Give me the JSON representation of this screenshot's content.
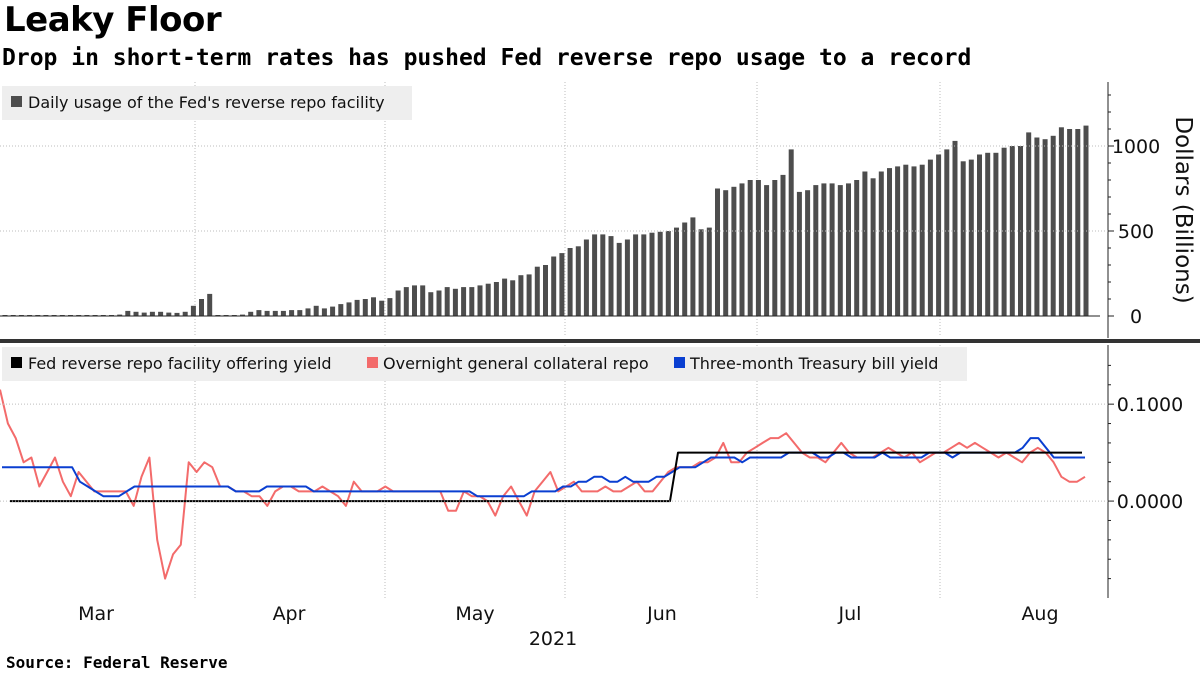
{
  "title": "Leaky Floor",
  "subtitle": "Drop in short-term rates has pushed Fed reverse repo usage to a record",
  "source": "Source: Federal Reserve",
  "colors": {
    "bars": "#4d4d4d",
    "fed_yield": "#000000",
    "overnight_repo": "#f36b6b",
    "tbill": "#0a3fd1",
    "grid": "#bdbdbd"
  },
  "chart_data": [
    {
      "type": "bar",
      "title": "Leaky Floor",
      "ylabel": "Dollars (Billions)",
      "ylim": [
        0,
        1350
      ],
      "yticks": [
        0,
        500,
        1000
      ],
      "ytick_labels": [
        "0",
        "500",
        "1000"
      ],
      "legend": [
        "Daily usage of the Fed's reverse repo facility"
      ],
      "xlabel": "2021",
      "x_month_labels": [
        "Mar",
        "Apr",
        "May",
        "Jun",
        "Jul",
        "Aug"
      ],
      "series": [
        {
          "name": "Daily usage of the Fed's reverse repo facility",
          "values": [
            2,
            3,
            2,
            3,
            4,
            3,
            2,
            5,
            4,
            3,
            2,
            6,
            4,
            5,
            8,
            30,
            25,
            20,
            25,
            25,
            20,
            18,
            25,
            60,
            100,
            130,
            5,
            2,
            5,
            8,
            25,
            35,
            30,
            30,
            30,
            35,
            35,
            45,
            60,
            45,
            55,
            70,
            80,
            95,
            100,
            110,
            90,
            105,
            150,
            170,
            180,
            180,
            140,
            150,
            170,
            160,
            170,
            170,
            180,
            190,
            200,
            220,
            210,
            240,
            245,
            290,
            300,
            350,
            370,
            400,
            410,
            450,
            480,
            480,
            470,
            430,
            450,
            480,
            480,
            490,
            495,
            500,
            520,
            550,
            580,
            510,
            520,
            750,
            740,
            760,
            780,
            800,
            800,
            770,
            800,
            830,
            980,
            730,
            740,
            770,
            780,
            780,
            770,
            780,
            800,
            850,
            810,
            850,
            870,
            880,
            890,
            880,
            890,
            920,
            950,
            980,
            1030,
            910,
            920,
            950,
            960,
            960,
            990,
            1000,
            1000,
            1080,
            1050,
            1040,
            1060,
            1110,
            1100,
            1100,
            1120
          ]
        }
      ]
    },
    {
      "type": "line",
      "ylim": [
        -0.1,
        0.16
      ],
      "yticks": [
        0.1,
        0.0
      ],
      "ytick_labels": [
        "0.1000",
        "0.0000"
      ],
      "legend": [
        "Fed reverse repo facility offering yield",
        "Overnight general collateral repo",
        "Three-month Treasury bill yield"
      ],
      "xlabel": "2021",
      "x_month_labels": [
        "Mar",
        "Apr",
        "May",
        "Jun",
        "Jul",
        "Aug"
      ],
      "series": [
        {
          "name": "Fed reverse repo facility offering yield",
          "values": [
            0,
            0,
            0,
            0,
            0,
            0,
            0,
            0,
            0,
            0,
            0,
            0,
            0,
            0,
            0,
            0,
            0,
            0,
            0,
            0,
            0,
            0,
            0,
            0,
            0,
            0,
            0,
            0,
            0,
            0,
            0,
            0,
            0,
            0,
            0,
            0,
            0,
            0,
            0,
            0,
            0,
            0,
            0,
            0,
            0,
            0,
            0,
            0,
            0,
            0,
            0,
            0,
            0,
            0,
            0,
            0,
            0,
            0,
            0,
            0,
            0,
            0,
            0,
            0,
            0,
            0,
            0,
            0,
            0,
            0,
            0,
            0,
            0,
            0,
            0,
            0,
            0,
            0,
            0,
            0,
            0,
            0,
            0,
            0,
            0,
            0,
            0.05,
            0.05,
            0.05,
            0.05,
            0.05,
            0.05,
            0.05,
            0.05,
            0.05,
            0.05,
            0.05,
            0.05,
            0.05,
            0.05,
            0.05,
            0.05,
            0.05,
            0.05,
            0.05,
            0.05,
            0.05,
            0.05,
            0.05,
            0.05,
            0.05,
            0.05,
            0.05,
            0.05,
            0.05,
            0.05,
            0.05,
            0.05,
            0.05,
            0.05,
            0.05,
            0.05,
            0.05,
            0.05,
            0.05,
            0.05,
            0.05,
            0.05,
            0.05,
            0.05,
            0.05,
            0.05,
            0.05,
            0.05
          ]
        },
        {
          "name": "Overnight general collateral repo",
          "values": [
            0.115,
            0.08,
            0.065,
            0.04,
            0.045,
            0.015,
            0.03,
            0.045,
            0.02,
            0.005,
            0.03,
            0.02,
            0.01,
            0.01,
            0.01,
            0.01,
            0.01,
            -0.005,
            0.025,
            0.045,
            -0.04,
            -0.08,
            -0.055,
            -0.045,
            0.04,
            0.03,
            0.04,
            0.035,
            0.015,
            0.015,
            0.01,
            0.01,
            0.005,
            0.005,
            -0.005,
            0.01,
            0.015,
            0.015,
            0.01,
            0.01,
            0.01,
            0.015,
            0.01,
            0.005,
            -0.005,
            0.02,
            0.01,
            0.01,
            0.01,
            0.015,
            0.01,
            0.01,
            0.01,
            0.01,
            0.01,
            0.01,
            0.01,
            -0.01,
            -0.01,
            0.01,
            0.005,
            0.005,
            0.0,
            -0.015,
            0.005,
            0.015,
            0.0,
            -0.015,
            0.01,
            0.02,
            0.03,
            0.01,
            0.015,
            0.02,
            0.01,
            0.01,
            0.01,
            0.015,
            0.01,
            0.01,
            0.015,
            0.02,
            0.01,
            0.01,
            0.02,
            0.03,
            0.035,
            0.035,
            0.035,
            0.04,
            0.04,
            0.045,
            0.06,
            0.04,
            0.04,
            0.05,
            0.055,
            0.06,
            0.065,
            0.065,
            0.07,
            0.06,
            0.05,
            0.045,
            0.045,
            0.04,
            0.05,
            0.06,
            0.05,
            0.045,
            0.045,
            0.045,
            0.05,
            0.055,
            0.05,
            0.045,
            0.05,
            0.04,
            0.045,
            0.05,
            0.05,
            0.055,
            0.06,
            0.055,
            0.06,
            0.055,
            0.05,
            0.045,
            0.05,
            0.045,
            0.04,
            0.05,
            0.055,
            0.05,
            0.04,
            0.025,
            0.02,
            0.02,
            0.025
          ]
        },
        {
          "name": "Three-month Treasury bill yield",
          "values": [
            0.035,
            0.035,
            0.035,
            0.035,
            0.035,
            0.035,
            0.035,
            0.035,
            0.035,
            0.035,
            0.02,
            0.015,
            0.01,
            0.005,
            0.005,
            0.005,
            0.01,
            0.015,
            0.015,
            0.015,
            0.015,
            0.015,
            0.015,
            0.015,
            0.015,
            0.015,
            0.015,
            0.015,
            0.015,
            0.015,
            0.01,
            0.01,
            0.01,
            0.01,
            0.015,
            0.015,
            0.015,
            0.015,
            0.015,
            0.015,
            0.01,
            0.01,
            0.01,
            0.01,
            0.01,
            0.01,
            0.01,
            0.01,
            0.01,
            0.01,
            0.01,
            0.01,
            0.01,
            0.01,
            0.01,
            0.01,
            0.01,
            0.01,
            0.01,
            0.01,
            0.01,
            0.005,
            0.005,
            0.005,
            0.005,
            0.005,
            0.005,
            0.005,
            0.01,
            0.01,
            0.01,
            0.01,
            0.015,
            0.015,
            0.02,
            0.02,
            0.025,
            0.025,
            0.02,
            0.02,
            0.025,
            0.02,
            0.02,
            0.02,
            0.025,
            0.025,
            0.03,
            0.035,
            0.035,
            0.035,
            0.04,
            0.045,
            0.045,
            0.045,
            0.045,
            0.04,
            0.045,
            0.045,
            0.045,
            0.045,
            0.045,
            0.05,
            0.05,
            0.05,
            0.05,
            0.045,
            0.045,
            0.05,
            0.05,
            0.045,
            0.045,
            0.045,
            0.045,
            0.05,
            0.045,
            0.045,
            0.045,
            0.045,
            0.045,
            0.05,
            0.05,
            0.05,
            0.045,
            0.05,
            0.05,
            0.05,
            0.05,
            0.05,
            0.05,
            0.05,
            0.05,
            0.055,
            0.065,
            0.065,
            0.055,
            0.045,
            0.045,
            0.045,
            0.045,
            0.045
          ]
        }
      ]
    }
  ]
}
